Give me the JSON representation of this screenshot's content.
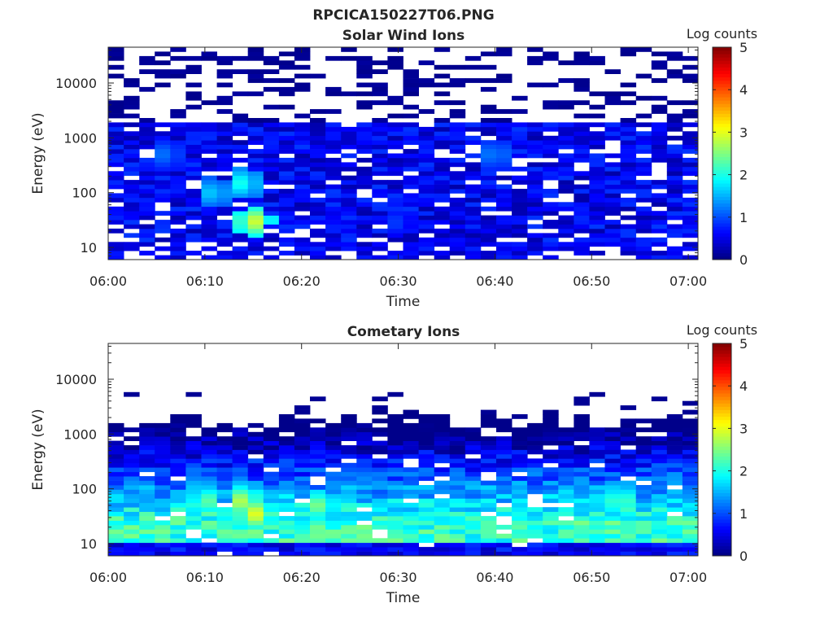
{
  "figure": {
    "title": "RPCICA150227T06.PNG"
  },
  "chart_data": [
    {
      "type": "heatmap",
      "title": "Solar Wind Ions",
      "xlabel": "Time",
      "ylabel": "Energy (eV)",
      "xtick_labels": [
        "06:00",
        "06:10",
        "06:20",
        "06:30",
        "06:40",
        "06:50",
        "07:00"
      ],
      "xlim": [
        "06:00",
        "07:01"
      ],
      "ytick_labels": [
        "10",
        "100",
        "1000",
        "10000"
      ],
      "ylim": [
        6,
        45000
      ],
      "yscale": "log",
      "colorbar": {
        "label": "Log counts",
        "range": [
          0,
          5
        ],
        "tick_labels": [
          "0",
          "1",
          "2",
          "3",
          "4",
          "5"
        ],
        "colormap": "jet"
      },
      "grid": false,
      "description_of_values": "Sparse low counts (0-0.5) above ~2 keV; mostly 0.3-1.0 between 20 eV and 1.5 keV; enhancement up to ~2.9 near 06:15 at 30-300 eV",
      "sample_cells": [
        {
          "time": "06:15",
          "energy_eV": 30,
          "log_counts": 2.9
        },
        {
          "time": "06:14",
          "energy_eV": 150,
          "log_counts": 2.0
        },
        {
          "time": "06:11",
          "energy_eV": 100,
          "log_counts": 1.7
        },
        {
          "time": "06:06",
          "energy_eV": 500,
          "log_counts": 1.2
        },
        {
          "time": "06:40",
          "energy_eV": 500,
          "log_counts": 1.3
        },
        {
          "time": "06:30",
          "energy_eV": 30,
          "log_counts": 0.9
        }
      ]
    },
    {
      "type": "heatmap",
      "title": "Cometary Ions",
      "xlabel": "Time",
      "ylabel": "Energy (eV)",
      "xtick_labels": [
        "06:00",
        "06:10",
        "06:20",
        "06:30",
        "06:40",
        "06:50",
        "07:00"
      ],
      "xlim": [
        "06:00",
        "07:01"
      ],
      "ytick_labels": [
        "10",
        "100",
        "1000",
        "10000"
      ],
      "ylim": [
        6,
        45000
      ],
      "yscale": "log",
      "colorbar": {
        "label": "Log counts",
        "range": [
          0,
          5
        ],
        "tick_labels": [
          "0",
          "1",
          "2",
          "3",
          "4",
          "5"
        ],
        "colormap": "jet"
      },
      "grid": false,
      "description_of_values": "Counts mostly 1-2.5 between 15 and 300 eV, decreasing with energy to ~0.3 near 2 keV; maximum ~3.0 near 06:15 at 30-60 eV",
      "sample_cells": [
        {
          "time": "06:15",
          "energy_eV": 35,
          "log_counts": 3.0
        },
        {
          "time": "06:14",
          "energy_eV": 60,
          "log_counts": 2.8
        },
        {
          "time": "06:10",
          "energy_eV": 60,
          "log_counts": 2.4
        },
        {
          "time": "06:22",
          "energy_eV": 50,
          "log_counts": 2.5
        },
        {
          "time": "06:53",
          "energy_eV": 60,
          "log_counts": 2.4
        },
        {
          "time": "06:30",
          "energy_eV": 30,
          "log_counts": 1.8
        },
        {
          "time": "06:05",
          "energy_eV": 500,
          "log_counts": 0.6
        }
      ]
    }
  ]
}
